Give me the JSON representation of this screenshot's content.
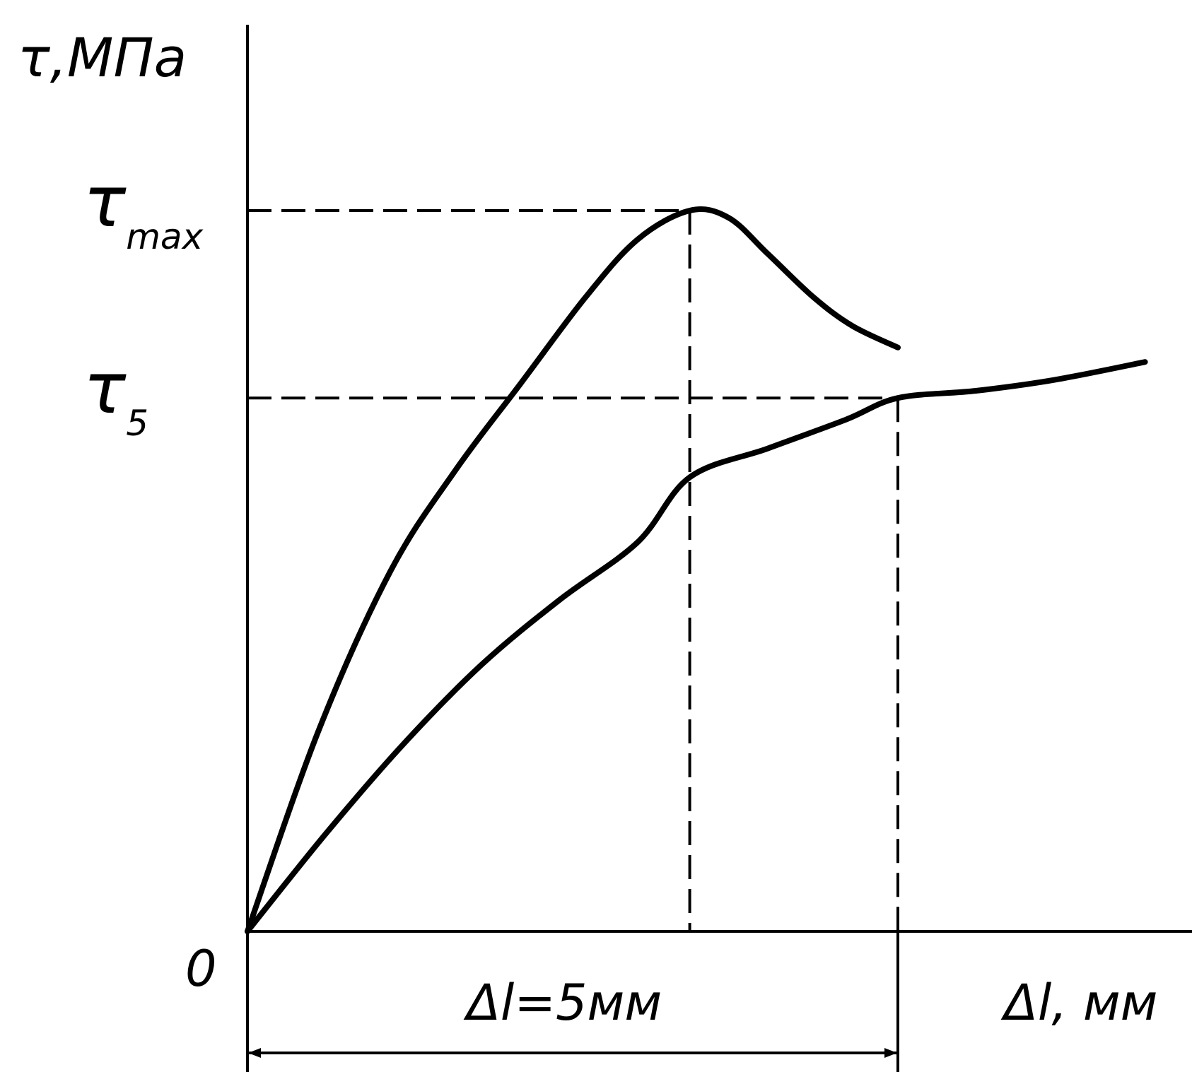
{
  "chart_data": {
    "type": "line",
    "ylabel": "τ,МПа",
    "xlabel": "Δl, мм",
    "origin_label": "0",
    "y_marks": [
      {
        "symbol": "τ",
        "sub": "max",
        "value": 1.0
      },
      {
        "symbol": "τ",
        "sub": "5",
        "value": 0.74
      }
    ],
    "dimension": {
      "label": "Δl=5мм",
      "from": 0,
      "to": 5
    },
    "x_marks": [
      3.4,
      5
    ],
    "series": [
      {
        "x": [
          0,
          0.55,
          1.1,
          1.6,
          2.1,
          2.6,
          3.0,
          3.4,
          3.7,
          4.0,
          4.35,
          4.65,
          5.0
        ],
        "y": [
          0,
          0.28,
          0.5,
          0.64,
          0.76,
          0.88,
          0.96,
          1.0,
          0.99,
          0.94,
          0.88,
          0.84,
          0.81
        ]
      },
      {
        "x": [
          0,
          0.6,
          1.2,
          1.8,
          2.4,
          3.0,
          3.4,
          4.0,
          4.6,
          5.0,
          5.6,
          6.2,
          6.9
        ],
        "y": [
          0,
          0.135,
          0.26,
          0.37,
          0.46,
          0.54,
          0.63,
          0.67,
          0.71,
          0.74,
          0.75,
          0.765,
          0.79
        ]
      }
    ]
  }
}
